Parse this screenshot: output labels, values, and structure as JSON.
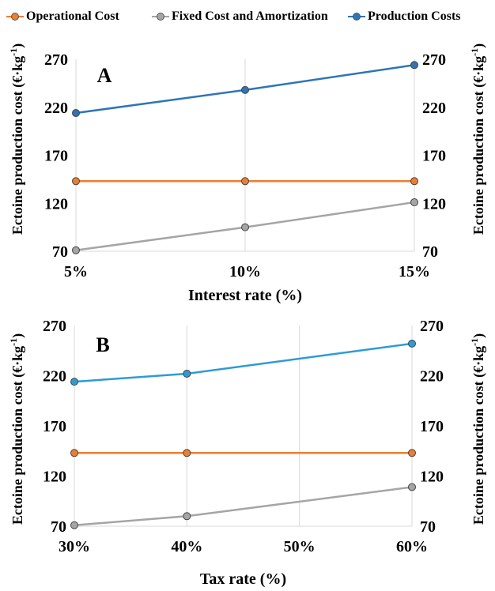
{
  "legend": {
    "operational": "Operational Cost",
    "fixed": "Fixed Cost and Amortization",
    "production": "Production Costs"
  },
  "colors": {
    "operational": "#ED7D31",
    "fixed": "#A5A5A5",
    "production": "#2E75B6",
    "production_b": "#2E9BD6"
  },
  "chart_data": [
    {
      "type": "line",
      "panel_label": "A",
      "categories": [
        "5%",
        "10%",
        "15%"
      ],
      "x": [
        5,
        10,
        15
      ],
      "xlim": [
        5,
        15
      ],
      "xlabel": "Interest rate (%)",
      "ylabel": "Ectoine production cost (€·kg",
      "ylabel_sup": "-1",
      "ylabel_close": ")",
      "ylim": [
        70,
        270
      ],
      "yticks": [
        "70",
        "120",
        "170",
        "220",
        "270"
      ],
      "secondary_axis": true,
      "grid": "vertical",
      "series": [
        {
          "name": "Operational Cost",
          "values": [
            143,
            143,
            143
          ]
        },
        {
          "name": "Fixed Cost and Amortization",
          "values": [
            71,
            95,
            121
          ]
        },
        {
          "name": "Production Costs",
          "values": [
            214,
            238,
            264
          ]
        }
      ]
    },
    {
      "type": "line",
      "panel_label": "B",
      "categories": [
        "30%",
        "40%",
        "50%",
        "60%"
      ],
      "x": [
        30,
        40,
        60
      ],
      "xlim": [
        30,
        60
      ],
      "xlabel": "Tax rate (%)",
      "ylabel": "Ectoine production cost (€·kg",
      "ylabel_sup": "-1",
      "ylabel_close": ")",
      "ylim": [
        70,
        270
      ],
      "yticks": [
        "70",
        "120",
        "170",
        "220",
        "270"
      ],
      "secondary_axis": true,
      "grid": "vertical",
      "series": [
        {
          "name": "Operational Cost",
          "values": [
            143,
            143,
            143
          ]
        },
        {
          "name": "Fixed Cost and Amortization",
          "values": [
            71,
            80,
            109
          ]
        },
        {
          "name": "Production Costs",
          "values": [
            214,
            222,
            252
          ]
        }
      ]
    }
  ]
}
